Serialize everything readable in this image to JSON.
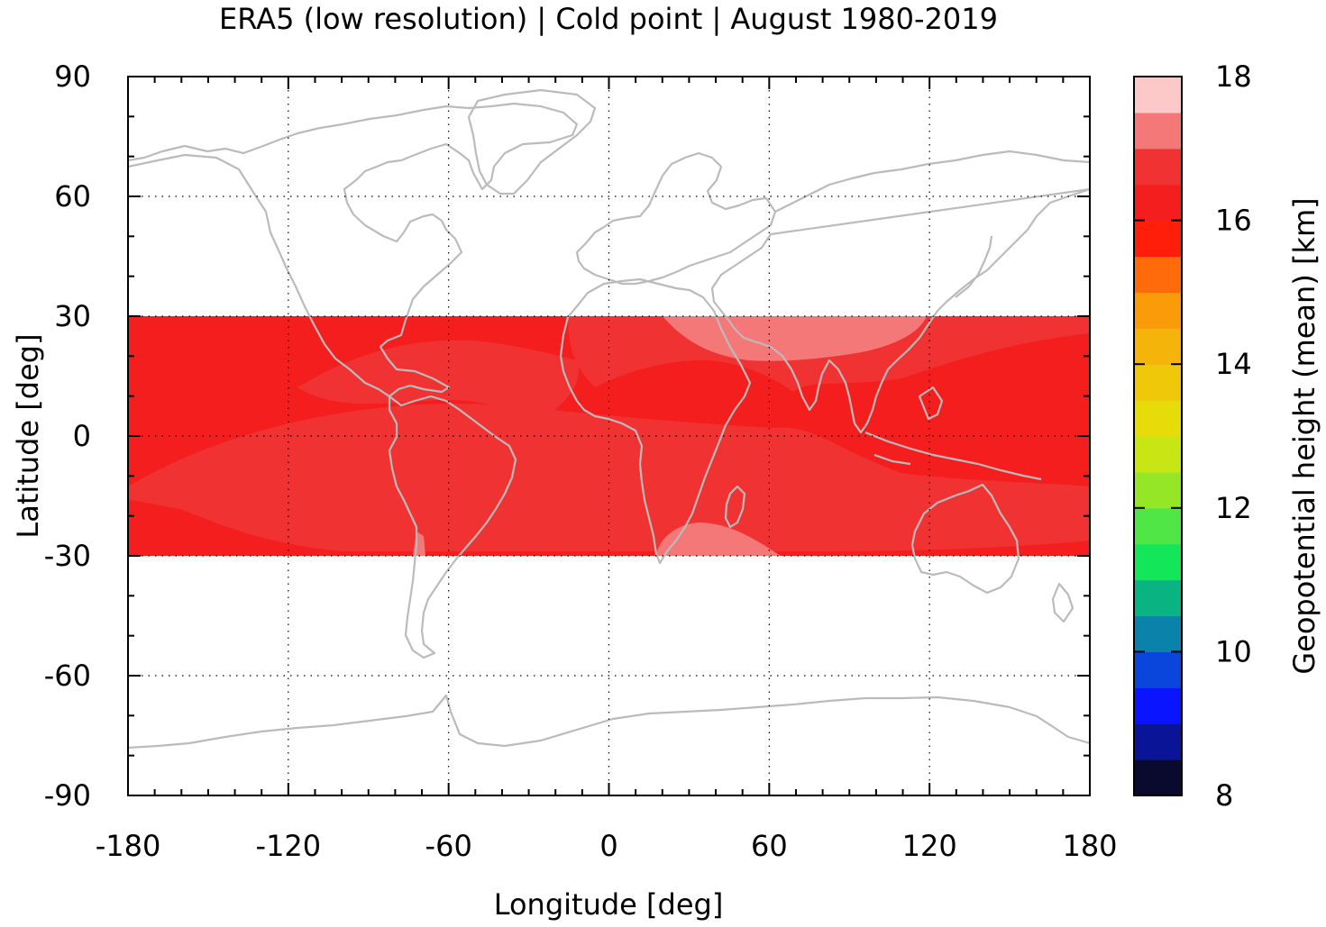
{
  "chart_data": {
    "type": "heatmap",
    "title": "ERA5 (low resolution) | Cold point | August 1980-2019",
    "xlabel": "Longitude [deg]",
    "ylabel": "Latitude [deg]",
    "xlim": [
      -180,
      180
    ],
    "ylim": [
      -90,
      90
    ],
    "xticks": [
      "-180",
      "-120",
      "-60",
      "0",
      "60",
      "120",
      "180"
    ],
    "yticks": [
      "90",
      "60",
      "30",
      "0",
      "-30",
      "-60",
      "-90"
    ],
    "grid": true,
    "data_extent_lat": [
      -30,
      30
    ],
    "colorbar": {
      "label": "Geopotential height (mean) [km]",
      "range": [
        8,
        18
      ],
      "ticks": [
        "8",
        "10",
        "12",
        "14",
        "16",
        "18"
      ],
      "colors": [
        "#0a0a2e",
        "#0a1496",
        "#0a14ff",
        "#0a46dc",
        "#0a82aa",
        "#0ab482",
        "#14e65a",
        "#50e646",
        "#96e628",
        "#c8e614",
        "#e6dc0a",
        "#f0c80a",
        "#f5b40a",
        "#fa9b0a",
        "#ff6a0a",
        "#ff1e0a",
        "#f51e1e",
        "#f03232",
        "#f57878",
        "#fcc8c8"
      ]
    },
    "regions": [
      {
        "name": "background",
        "value": 16.25
      },
      {
        "name": "middle-east-high",
        "value": 17.25
      },
      {
        "name": "south-africa-high",
        "value": 17.25
      },
      {
        "name": "southern-band",
        "value": 16.75
      },
      {
        "name": "indian-ocean-band",
        "value": 16.75
      },
      {
        "name": "atlantic-band",
        "value": 16.75
      }
    ]
  },
  "colors": {
    "coastline": "#bbbbbb",
    "base_field": "#f51e1e",
    "mid_field": "#f03232",
    "high_field": "#f57878"
  }
}
